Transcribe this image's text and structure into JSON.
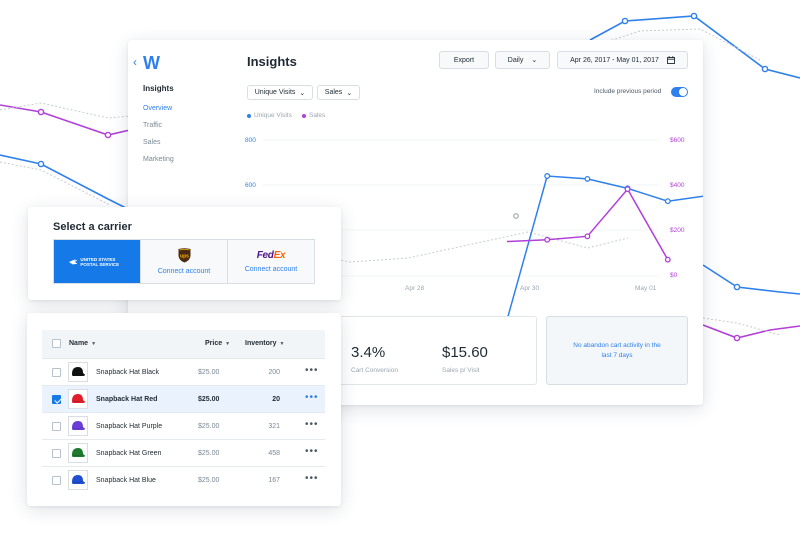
{
  "dashboard": {
    "logo": "W",
    "sidebar": {
      "title": "Insights",
      "items": [
        {
          "label": "Overview",
          "active": true
        },
        {
          "label": "Traffic",
          "active": false
        },
        {
          "label": "Sales",
          "active": false
        },
        {
          "label": "Marketing",
          "active": false
        }
      ]
    },
    "header": {
      "title": "Insights",
      "export_label": "Export",
      "period_value": "Daily",
      "date_range": "Apr 26, 2017 - May 01, 2017"
    },
    "filters": {
      "metric_primary": "Unique Visits",
      "metric_secondary": "Sales",
      "toggle_label": "Include previous period",
      "toggle_on": true
    },
    "legend": [
      {
        "label": "Unique Visits",
        "color": "#2f80ed"
      },
      {
        "label": "Sales",
        "color": "#b23fd8"
      }
    ],
    "stats": {
      "conversion_value": "3.4%",
      "conversion_label": "Cart Conversion",
      "sales_value": "$15.60",
      "sales_label": "Sales p/ Visit",
      "empty_message": "No abandon cart activity in the last 7 days"
    }
  },
  "chart_data": {
    "type": "line",
    "x": [
      "Apr 26",
      "Apr 27",
      "Apr 28",
      "Apr 29",
      "Apr 30",
      "May 01"
    ],
    "x_tick_labels": [
      "Apr 28",
      "Apr 30",
      "May 01"
    ],
    "y_left_ticks": [
      "800",
      "600"
    ],
    "y_right_ticks": [
      "$600",
      "$400",
      "$200",
      "$0"
    ],
    "y_left_range": [
      0,
      800
    ],
    "y_right_range": [
      0,
      600
    ],
    "series": [
      {
        "name": "Unique Visits",
        "axis": "left",
        "color": "#2f80ed",
        "points": [
          [
            4.95,
            0
          ],
          [
            5.95,
            640
          ],
          [
            6.95,
            627
          ],
          [
            7.95,
            585
          ],
          [
            8.95,
            528
          ],
          [
            9.95,
            553
          ]
        ]
      },
      {
        "name": "Sales",
        "axis": "right",
        "color": "#b23fd8",
        "points": [
          [
            4.95,
            152
          ],
          [
            5.95,
            160
          ],
          [
            6.95,
            175
          ],
          [
            7.95,
            383
          ],
          [
            8.95,
            72
          ]
        ]
      }
    ],
    "previous_period_color": "#c5ccd3",
    "grid": true
  },
  "carrier": {
    "title": "Select a carrier",
    "options": [
      {
        "name": "USPS",
        "logo_text": "UNITED STATES POSTAL SERVICE",
        "selected": true,
        "action": ""
      },
      {
        "name": "UPS",
        "logo_text": "ups",
        "selected": false,
        "action": "Connect account"
      },
      {
        "name": "FedEx",
        "logo_text": "FedEx",
        "selected": false,
        "action": "Connect account"
      }
    ]
  },
  "products": {
    "columns": {
      "name": "Name",
      "price": "Price",
      "inventory": "Inventory"
    },
    "rows": [
      {
        "name": "Snapback Hat Black",
        "price": "$25.00",
        "inventory": "200",
        "color": "#111111",
        "selected": false
      },
      {
        "name": "Snapback Hat Red",
        "price": "$25.00",
        "inventory": "20",
        "color": "#e01e2b",
        "selected": true
      },
      {
        "name": "Snapback Hat Purple",
        "price": "$25.00",
        "inventory": "321",
        "color": "#6a3fd8",
        "selected": false
      },
      {
        "name": "Snapback Hat Green",
        "price": "$25.00",
        "inventory": "458",
        "color": "#1d7a2e",
        "selected": false
      },
      {
        "name": "Snapback Hat Blue",
        "price": "$25.00",
        "inventory": "167",
        "color": "#1f4fd1",
        "selected": false
      }
    ],
    "more_label": "•••"
  }
}
